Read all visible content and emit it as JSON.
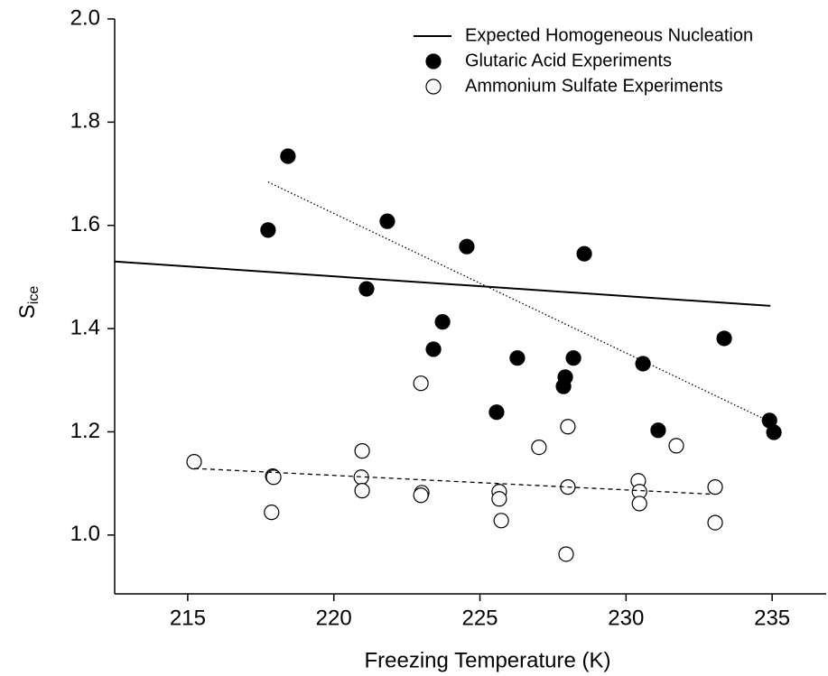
{
  "chart_data": {
    "type": "scatter",
    "x_label": "Freezing Temperature (K)",
    "y_label": "S",
    "y_label_sub": "ice",
    "xlim": [
      212.5,
      236.85
    ],
    "ylim": [
      0.886,
      2.0
    ],
    "xticks": [
      215,
      220,
      225,
      230,
      235
    ],
    "yticks": [
      {
        "value": 1.0,
        "label": "1.0"
      },
      1.2,
      1.4,
      1.6,
      1.8,
      {
        "value": 2.0,
        "label": "2.0"
      }
    ],
    "legend": "top-right",
    "series": [
      {
        "name": "Expected Homogeneous Nucleation",
        "kind": "line",
        "style": "solid",
        "color": "#000000",
        "x": [
          212.5,
          234.94
        ],
        "values": [
          1.53,
          1.444
        ]
      },
      {
        "name": "Glutaric Acid Experiments",
        "kind": "scatter",
        "filled": true,
        "color": "#000000",
        "x": [
          217.75,
          218.43,
          221.12,
          221.83,
          223.72,
          223.41,
          224.55,
          225.57,
          226.28,
          227.92,
          227.86,
          228.2,
          228.57,
          230.58,
          231.1,
          233.36,
          234.91,
          235.06
        ],
        "values": [
          1.591,
          1.734,
          1.477,
          1.608,
          1.413,
          1.36,
          1.559,
          1.238,
          1.343,
          1.306,
          1.288,
          1.343,
          1.545,
          1.332,
          1.203,
          1.381,
          1.222,
          1.199
        ]
      },
      {
        "name": "Ammonium Sulfate Experiments",
        "kind": "scatter",
        "filled": false,
        "color": "#000000",
        "x": [
          215.22,
          217.91,
          217.94,
          217.87,
          220.97,
          220.94,
          220.97,
          222.98,
          223.01,
          222.98,
          225.66,
          225.66,
          225.73,
          227.02,
          228.01,
          228.01,
          227.95,
          230.42,
          230.46,
          230.46,
          231.72,
          233.05,
          233.05
        ],
        "values": [
          1.142,
          1.114,
          1.112,
          1.044,
          1.163,
          1.112,
          1.086,
          1.294,
          1.082,
          1.077,
          1.084,
          1.07,
          1.028,
          1.17,
          1.21,
          1.093,
          0.963,
          1.105,
          1.084,
          1.061,
          1.173,
          1.093,
          1.024
        ]
      },
      {
        "kind": "line",
        "style": "dotted",
        "color": "#000000",
        "x": [
          217.75,
          234.91
        ],
        "values": [
          1.684,
          1.22
        ]
      },
      {
        "kind": "line",
        "style": "dashed",
        "color": "#000000",
        "x": [
          215.22,
          233.0
        ],
        "values": [
          1.129,
          1.079
        ]
      }
    ]
  }
}
